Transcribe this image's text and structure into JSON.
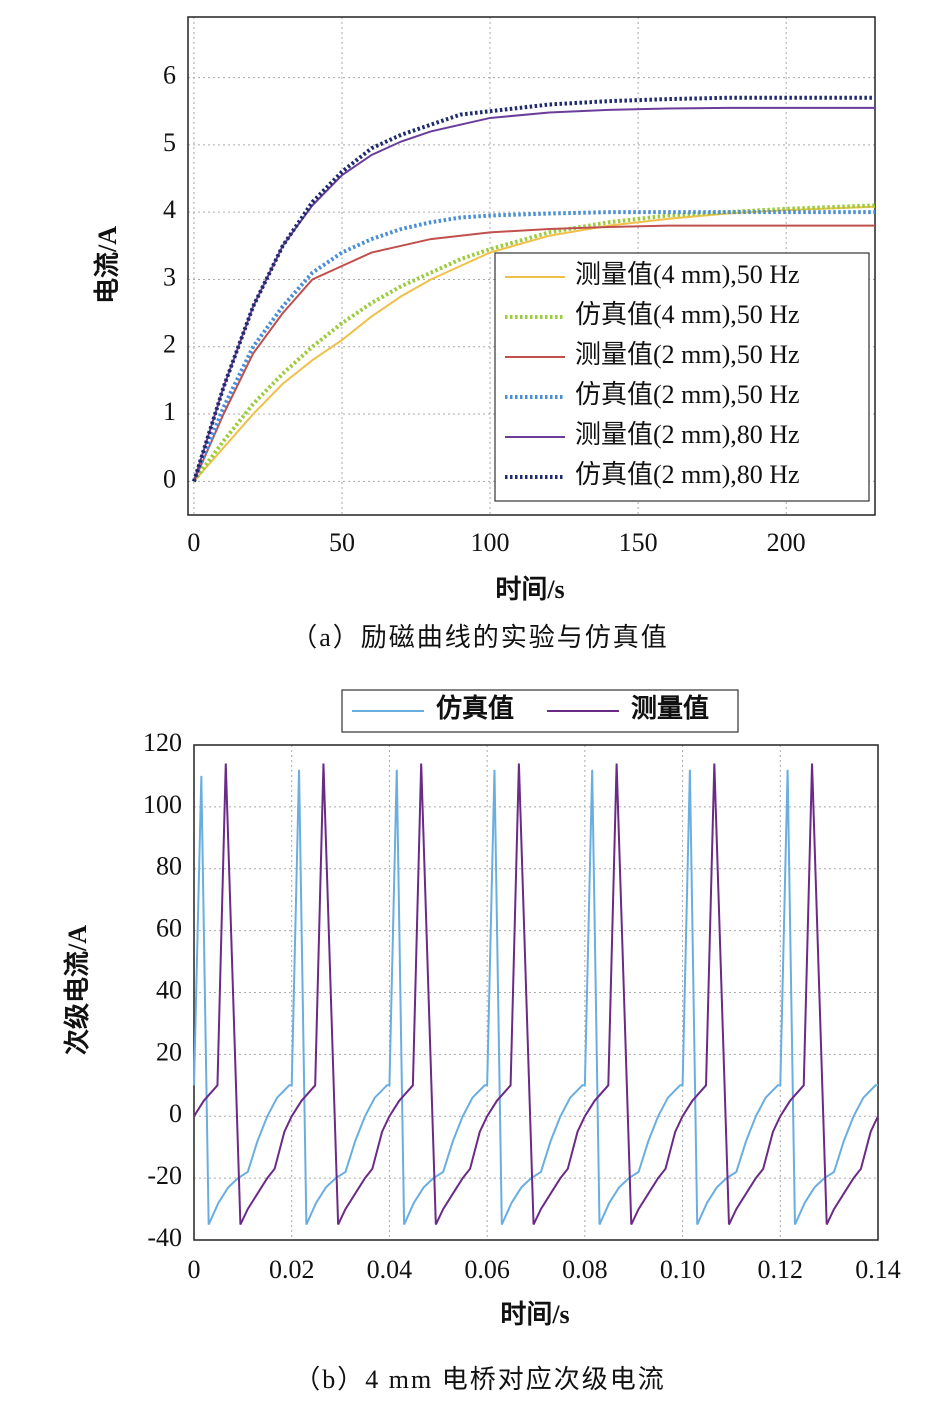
{
  "chart_data": [
    {
      "type": "line",
      "caption": "（a）励磁曲线的实验与仿真值",
      "x_label": "时间/s",
      "y_label": "电流/A",
      "x": [
        0,
        10,
        20,
        30,
        40,
        50,
        60,
        70,
        80,
        90,
        100,
        120,
        140,
        160,
        180,
        200,
        230
      ],
      "series": [
        {
          "name": "测量值(4 mm),50 Hz",
          "color": "#f0c04a",
          "dotted": false,
          "values": [
            0,
            0.5,
            1.0,
            1.45,
            1.8,
            2.1,
            2.45,
            2.75,
            3.0,
            3.2,
            3.4,
            3.65,
            3.8,
            3.9,
            3.98,
            4.03,
            4.08
          ]
        },
        {
          "name": "仿真值(4 mm),50 Hz",
          "color": "#9ccc3c",
          "dotted": true,
          "values": [
            0,
            0.6,
            1.15,
            1.6,
            2.0,
            2.35,
            2.65,
            2.9,
            3.1,
            3.3,
            3.45,
            3.7,
            3.85,
            3.95,
            4.0,
            4.05,
            4.1
          ]
        },
        {
          "name": "测量值(2 mm),50 Hz",
          "color": "#c0504d",
          "dotted": false,
          "values": [
            0,
            1.0,
            1.9,
            2.5,
            3.0,
            3.2,
            3.4,
            3.5,
            3.6,
            3.65,
            3.7,
            3.75,
            3.78,
            3.8,
            3.8,
            3.8,
            3.8
          ]
        },
        {
          "name": "仿真值(2 mm),50 Hz",
          "color": "#4a8fd6",
          "dotted": true,
          "values": [
            0,
            1.1,
            2.0,
            2.6,
            3.1,
            3.4,
            3.6,
            3.75,
            3.85,
            3.92,
            3.95,
            3.98,
            4.0,
            4.0,
            4.0,
            4.0,
            4.0
          ]
        },
        {
          "name": "测量值(2 mm),80 Hz",
          "color": "#6a3d9a",
          "dotted": false,
          "values": [
            0,
            1.4,
            2.6,
            3.5,
            4.1,
            4.55,
            4.85,
            5.05,
            5.2,
            5.3,
            5.4,
            5.48,
            5.52,
            5.54,
            5.55,
            5.55,
            5.55
          ]
        },
        {
          "name": "仿真值(2 mm),80 Hz",
          "color": "#1f2a6e",
          "dotted": true,
          "values": [
            0,
            1.4,
            2.6,
            3.5,
            4.15,
            4.6,
            4.95,
            5.15,
            5.3,
            5.45,
            5.5,
            5.6,
            5.65,
            5.68,
            5.7,
            5.7,
            5.7
          ]
        }
      ],
      "xlim": [
        -2,
        230
      ],
      "xticks": [
        0,
        50,
        100,
        150,
        200
      ],
      "ylim": [
        -0.5,
        6.9
      ],
      "yticks": [
        0,
        1,
        2,
        3,
        4,
        5,
        6
      ],
      "grid": true,
      "legend": "lower right"
    },
    {
      "type": "line",
      "caption": "（b）4 mm 电桥对应次级电流",
      "x_label": "时间/s",
      "y_label": "次级电流/A",
      "series": [
        {
          "name": "仿真值",
          "color": "#6aaee0",
          "dotted": false,
          "x": [
            0,
            0.0015,
            0.003,
            0.005,
            0.007,
            0.009,
            0.011,
            0.013,
            0.015,
            0.017,
            0.0195,
            0.02,
            0.0215,
            0.023,
            0.025,
            0.027,
            0.029,
            0.031,
            0.033,
            0.035,
            0.037,
            0.0395,
            0.04,
            0.0415,
            0.043,
            0.045,
            0.047,
            0.049,
            0.051,
            0.053,
            0.055,
            0.057,
            0.0595,
            0.06,
            0.0615,
            0.063,
            0.065,
            0.067,
            0.069,
            0.071,
            0.073,
            0.075,
            0.077,
            0.0795,
            0.08,
            0.0815,
            0.083,
            0.085,
            0.087,
            0.089,
            0.091,
            0.093,
            0.095,
            0.097,
            0.0995,
            0.1,
            0.1015,
            0.103,
            0.105,
            0.107,
            0.109,
            0.111,
            0.113,
            0.115,
            0.117,
            0.1195,
            0.12,
            0.1215,
            0.123,
            0.125,
            0.127,
            0.129,
            0.131,
            0.133,
            0.135,
            0.137,
            0.1395,
            0.14
          ],
          "values": [
            10,
            110,
            -35,
            -28,
            -23,
            -20,
            -18,
            -8,
            0,
            6,
            10,
            10,
            112,
            -35,
            -28,
            -23,
            -20,
            -18,
            -8,
            0,
            6,
            10,
            10,
            112,
            -35,
            -28,
            -23,
            -20,
            -18,
            -8,
            0,
            6,
            10,
            10,
            112,
            -35,
            -28,
            -23,
            -20,
            -18,
            -8,
            0,
            6,
            10,
            10,
            112,
            -35,
            -28,
            -23,
            -20,
            -18,
            -8,
            0,
            6,
            10,
            10,
            112,
            -35,
            -28,
            -23,
            -20,
            -18,
            -8,
            0,
            6,
            10,
            10,
            112,
            -35,
            -28,
            -23,
            -20,
            -18,
            -8,
            0,
            6,
            10,
            10
          ]
        },
        {
          "name": "测量值",
          "color": "#6b2a86",
          "dotted": false,
          "x": [
            0,
            0.002,
            0.0048,
            0.0065,
            0.0095,
            0.011,
            0.013,
            0.015,
            0.0165,
            0.0185,
            0.02,
            0.022,
            0.0248,
            0.0265,
            0.0295,
            0.031,
            0.033,
            0.035,
            0.0365,
            0.0385,
            0.04,
            0.042,
            0.0448,
            0.0465,
            0.0495,
            0.051,
            0.053,
            0.055,
            0.0565,
            0.0585,
            0.06,
            0.062,
            0.0648,
            0.0665,
            0.0695,
            0.071,
            0.073,
            0.075,
            0.0765,
            0.0785,
            0.08,
            0.082,
            0.0848,
            0.0865,
            0.0895,
            0.091,
            0.093,
            0.095,
            0.0965,
            0.0985,
            0.1,
            0.102,
            0.1048,
            0.1065,
            0.1095,
            0.111,
            0.113,
            0.115,
            0.1165,
            0.1185,
            0.12,
            0.122,
            0.1248,
            0.1265,
            0.1295,
            0.131,
            0.133,
            0.135,
            0.1365,
            0.1385,
            0.14
          ],
          "values": [
            0,
            5,
            10,
            114,
            -35,
            -30,
            -25,
            -20,
            -17,
            -5,
            0,
            5,
            10,
            114,
            -35,
            -30,
            -25,
            -20,
            -17,
            -5,
            0,
            5,
            10,
            114,
            -35,
            -30,
            -25,
            -20,
            -17,
            -5,
            0,
            5,
            10,
            114,
            -35,
            -30,
            -25,
            -20,
            -17,
            -5,
            0,
            5,
            10,
            114,
            -35,
            -30,
            -25,
            -20,
            -17,
            -5,
            0,
            5,
            10,
            114,
            -35,
            -30,
            -25,
            -20,
            -17,
            -5,
            0,
            5,
            10,
            114,
            -35,
            -30,
            -25,
            -20,
            -17,
            -5,
            0
          ]
        }
      ],
      "xlim": [
        0,
        0.14
      ],
      "xticks": [
        0,
        0.02,
        0.04,
        0.06,
        0.08,
        {
          "value": 0.1,
          "label": "0.10"
        },
        0.12,
        0.14
      ],
      "ylim": [
        -40,
        120
      ],
      "yticks": [
        -40,
        -20,
        0,
        20,
        40,
        60,
        80,
        100,
        120
      ],
      "grid": true,
      "legend": "top"
    }
  ]
}
